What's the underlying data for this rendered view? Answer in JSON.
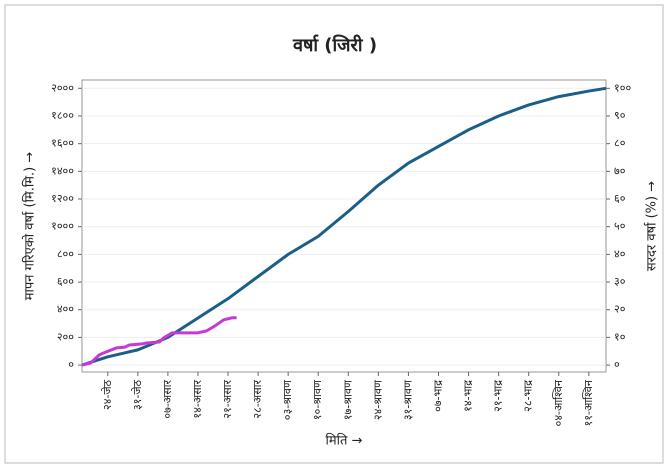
{
  "chart_data": {
    "type": "line",
    "title": "वर्षा (जिरी )",
    "xlabel": "मिति →",
    "ylabel": "मापन गरिएको वर्षा (मि.मि.) →",
    "y2label": "सरदर वर्षा (%) →",
    "xlim": [
      0,
      122
    ],
    "xticks": [
      {
        "value": 6,
        "label": "२४-जेठ"
      },
      {
        "value": 13,
        "label": "३१-जेठ"
      },
      {
        "value": 20,
        "label": "०७-असार"
      },
      {
        "value": 27,
        "label": "१४-असार"
      },
      {
        "value": 34,
        "label": "२१-असार"
      },
      {
        "value": 41,
        "label": "२८-असार"
      },
      {
        "value": 48,
        "label": "०३-श्रावण"
      },
      {
        "value": 55,
        "label": "१०-श्रावण"
      },
      {
        "value": 62,
        "label": "१७-श्रावण"
      },
      {
        "value": 69,
        "label": "२४-श्रावण"
      },
      {
        "value": 76,
        "label": "३१-श्रावण"
      },
      {
        "value": 83,
        "label": "०७-भाद्र"
      },
      {
        "value": 90,
        "label": "१४-भाद्र"
      },
      {
        "value": 97,
        "label": "२१-भाद्र"
      },
      {
        "value": 104,
        "label": "२८-भाद्र"
      },
      {
        "value": 111,
        "label": "०४-आश्विन"
      },
      {
        "value": 118,
        "label": "११-आश्विन"
      }
    ],
    "ylim": [
      -50,
      2060
    ],
    "yticks": [
      {
        "value": 0,
        "label": "०"
      },
      {
        "value": 200,
        "label": "२००"
      },
      {
        "value": 400,
        "label": "४००"
      },
      {
        "value": 600,
        "label": "६००"
      },
      {
        "value": 800,
        "label": "८००"
      },
      {
        "value": 1000,
        "label": "१०००"
      },
      {
        "value": 1200,
        "label": "१२००"
      },
      {
        "value": 1400,
        "label": "१४००"
      },
      {
        "value": 1600,
        "label": "१६००"
      },
      {
        "value": 1800,
        "label": "१८००"
      },
      {
        "value": 2000,
        "label": "२०००"
      }
    ],
    "y2lim": [
      -2.5,
      103
    ],
    "y2ticks": [
      {
        "value": 0,
        "label": "०"
      },
      {
        "value": 10,
        "label": "१०"
      },
      {
        "value": 20,
        "label": "२०"
      },
      {
        "value": 30,
        "label": "३०"
      },
      {
        "value": 40,
        "label": "४०"
      },
      {
        "value": 50,
        "label": "५०"
      },
      {
        "value": 60,
        "label": "६०"
      },
      {
        "value": 70,
        "label": "७०"
      },
      {
        "value": 80,
        "label": "८०"
      },
      {
        "value": 90,
        "label": "९०"
      },
      {
        "value": 100,
        "label": "१००"
      }
    ],
    "grid": true,
    "series": [
      {
        "color": "#1a5e8a",
        "axis": "y2",
        "x": [
          0,
          6,
          13,
          20,
          27,
          34,
          41,
          48,
          55,
          62,
          69,
          76,
          83,
          90,
          97,
          104,
          111,
          118,
          122
        ],
        "values": [
          0,
          3,
          5.5,
          10,
          17,
          24,
          32,
          40,
          46.5,
          55.5,
          65,
          73,
          79,
          85,
          90,
          94,
          97,
          99,
          100
        ]
      },
      {
        "color": "#c838d8",
        "x": [
          0,
          2,
          4,
          5,
          8,
          10,
          11,
          14,
          15,
          18,
          19,
          21,
          24,
          27,
          29,
          31,
          33,
          35,
          36
        ],
        "values": [
          0,
          15,
          73,
          87,
          124,
          130,
          145,
          153,
          160,
          167,
          196,
          233,
          233,
          233,
          247,
          284,
          327,
          342,
          342
        ]
      }
    ]
  }
}
